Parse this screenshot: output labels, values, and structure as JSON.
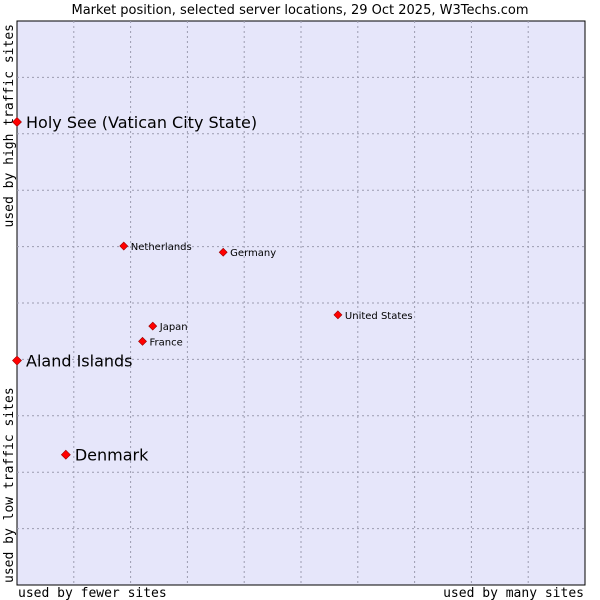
{
  "chart_data": {
    "type": "scatter",
    "title": "Market position, selected server locations, 29 Oct 2025, W3Techs.com",
    "xlabel_left": "used by fewer sites",
    "xlabel_right": "used by many sites",
    "ylabel_bottom": "used by low traffic sites",
    "ylabel_top": "used by high traffic sites",
    "xlim": [
      0,
      100
    ],
    "ylim": [
      0,
      100
    ],
    "grid": true,
    "point_color": "#ff0000",
    "plot_background": "#e6e6fa",
    "points": [
      {
        "name": "Holy See (Vatican City State)",
        "x": 0,
        "y": 82.1,
        "highlight": true
      },
      {
        "name": "Aland Islands",
        "x": 0,
        "y": 39.8,
        "highlight": true
      },
      {
        "name": "Denmark",
        "x": 8.6,
        "y": 23.1,
        "highlight": true
      },
      {
        "name": "Netherlands",
        "x": 18.8,
        "y": 60.1,
        "highlight": false
      },
      {
        "name": "Germany",
        "x": 36.3,
        "y": 59.0,
        "highlight": false
      },
      {
        "name": "United States",
        "x": 56.5,
        "y": 47.9,
        "highlight": false
      },
      {
        "name": "Japan",
        "x": 23.9,
        "y": 45.9,
        "highlight": false
      },
      {
        "name": "France",
        "x": 22.1,
        "y": 43.2,
        "highlight": false
      }
    ]
  }
}
